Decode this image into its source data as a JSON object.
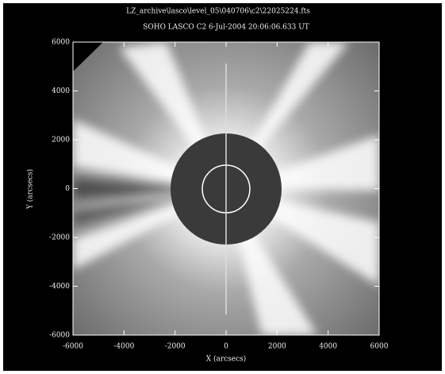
{
  "chart_data": {
    "type": "image",
    "path_label": "LZ_archive\\lasco\\level_05\\040706\\c2\\22025224.fts",
    "title": "SOHO LASCO C2  6-Jul-2004 20:06:06.633 UT",
    "x_label": "X (arcsecs)",
    "y_label": "Y (arcsecs)",
    "xlim": [
      -6000,
      6000
    ],
    "ylim": [
      -6000,
      6000
    ],
    "xticks": [
      -6000,
      -4000,
      -2000,
      0,
      2000,
      4000,
      6000
    ],
    "yticks": [
      -6000,
      -4000,
      -2000,
      0,
      2000,
      4000,
      6000
    ]
  }
}
